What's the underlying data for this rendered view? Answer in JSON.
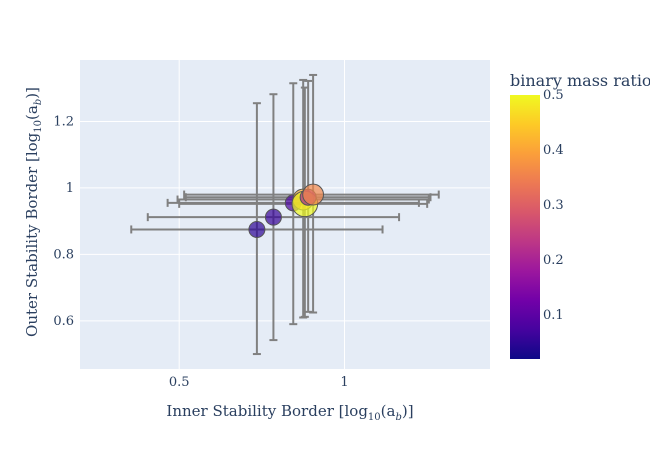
{
  "chart_data": {
    "type": "scatter",
    "title": "",
    "xlabel_parts": {
      "pre": "Inner Stability Border [log",
      "sub": "10",
      "mid": "(a",
      "sub2": "b",
      "post": ")]"
    },
    "ylabel_parts": {
      "pre": "Outer Stability Border [log",
      "sub": "10",
      "mid": "(a",
      "sub2": "b",
      "post": ")]"
    },
    "xlim": [
      0.2,
      1.44
    ],
    "ylim": [
      0.455,
      1.385
    ],
    "x_ticks": [
      {
        "value": 0.5,
        "label": "0.5"
      },
      {
        "value": 1,
        "label": "1"
      }
    ],
    "y_ticks": [
      {
        "value": 0.6,
        "label": "0.6"
      },
      {
        "value": 0.8,
        "label": "0.8"
      },
      {
        "value": 1.0,
        "label": "1"
      },
      {
        "value": 1.2,
        "label": "1.2"
      }
    ],
    "grid": true,
    "colorbar": {
      "title": "binary mass ratio",
      "range": [
        0.02,
        0.5
      ],
      "ticks": [
        {
          "value": 0.1,
          "label": "0.1"
        },
        {
          "value": 0.2,
          "label": "0.2"
        },
        {
          "value": 0.3,
          "label": "0.3"
        },
        {
          "value": 0.4,
          "label": "0.4"
        },
        {
          "value": 0.5,
          "label": "0.5"
        }
      ],
      "colorscale": [
        "#0d0887",
        "#46039f",
        "#7201a8",
        "#9c179e",
        "#bd3786",
        "#d8576b",
        "#ed7953",
        "#fb9f3a",
        "#fdca26",
        "#f0f921"
      ]
    },
    "points": [
      {
        "x": 0.735,
        "y": 0.875,
        "x_err": [
          0.38,
          0.38
        ],
        "y_err": [
          0.375,
          0.38
        ],
        "ratio": 0.05,
        "size": 1.0
      },
      {
        "x": 0.785,
        "y": 0.912,
        "x_err": [
          0.38,
          0.38
        ],
        "y_err": [
          0.37,
          0.37
        ],
        "ratio": 0.06,
        "size": 1.0
      },
      {
        "x": 0.845,
        "y": 0.955,
        "x_err": [
          0.38,
          0.38
        ],
        "y_err": [
          0.365,
          0.36
        ],
        "ratio": 0.08,
        "size": 1.0
      },
      {
        "x": 0.875,
        "y": 0.965,
        "x_err": [
          0.38,
          0.38
        ],
        "y_err": [
          0.355,
          0.36
        ],
        "ratio": 0.42,
        "size": 1.3
      },
      {
        "x": 0.88,
        "y": 0.952,
        "x_err": [
          0.38,
          0.37
        ],
        "y_err": [
          0.34,
          0.35
        ],
        "ratio": 0.5,
        "size": 1.6
      },
      {
        "x": 0.89,
        "y": 0.972,
        "x_err": [
          0.37,
          0.37
        ],
        "y_err": [
          0.345,
          0.35
        ],
        "ratio": 0.2,
        "size": 1.0
      },
      {
        "x": 0.905,
        "y": 0.98,
        "x_err": [
          0.39,
          0.38
        ],
        "y_err": [
          0.355,
          0.36
        ],
        "ratio": 0.36,
        "size": 1.3
      }
    ]
  }
}
